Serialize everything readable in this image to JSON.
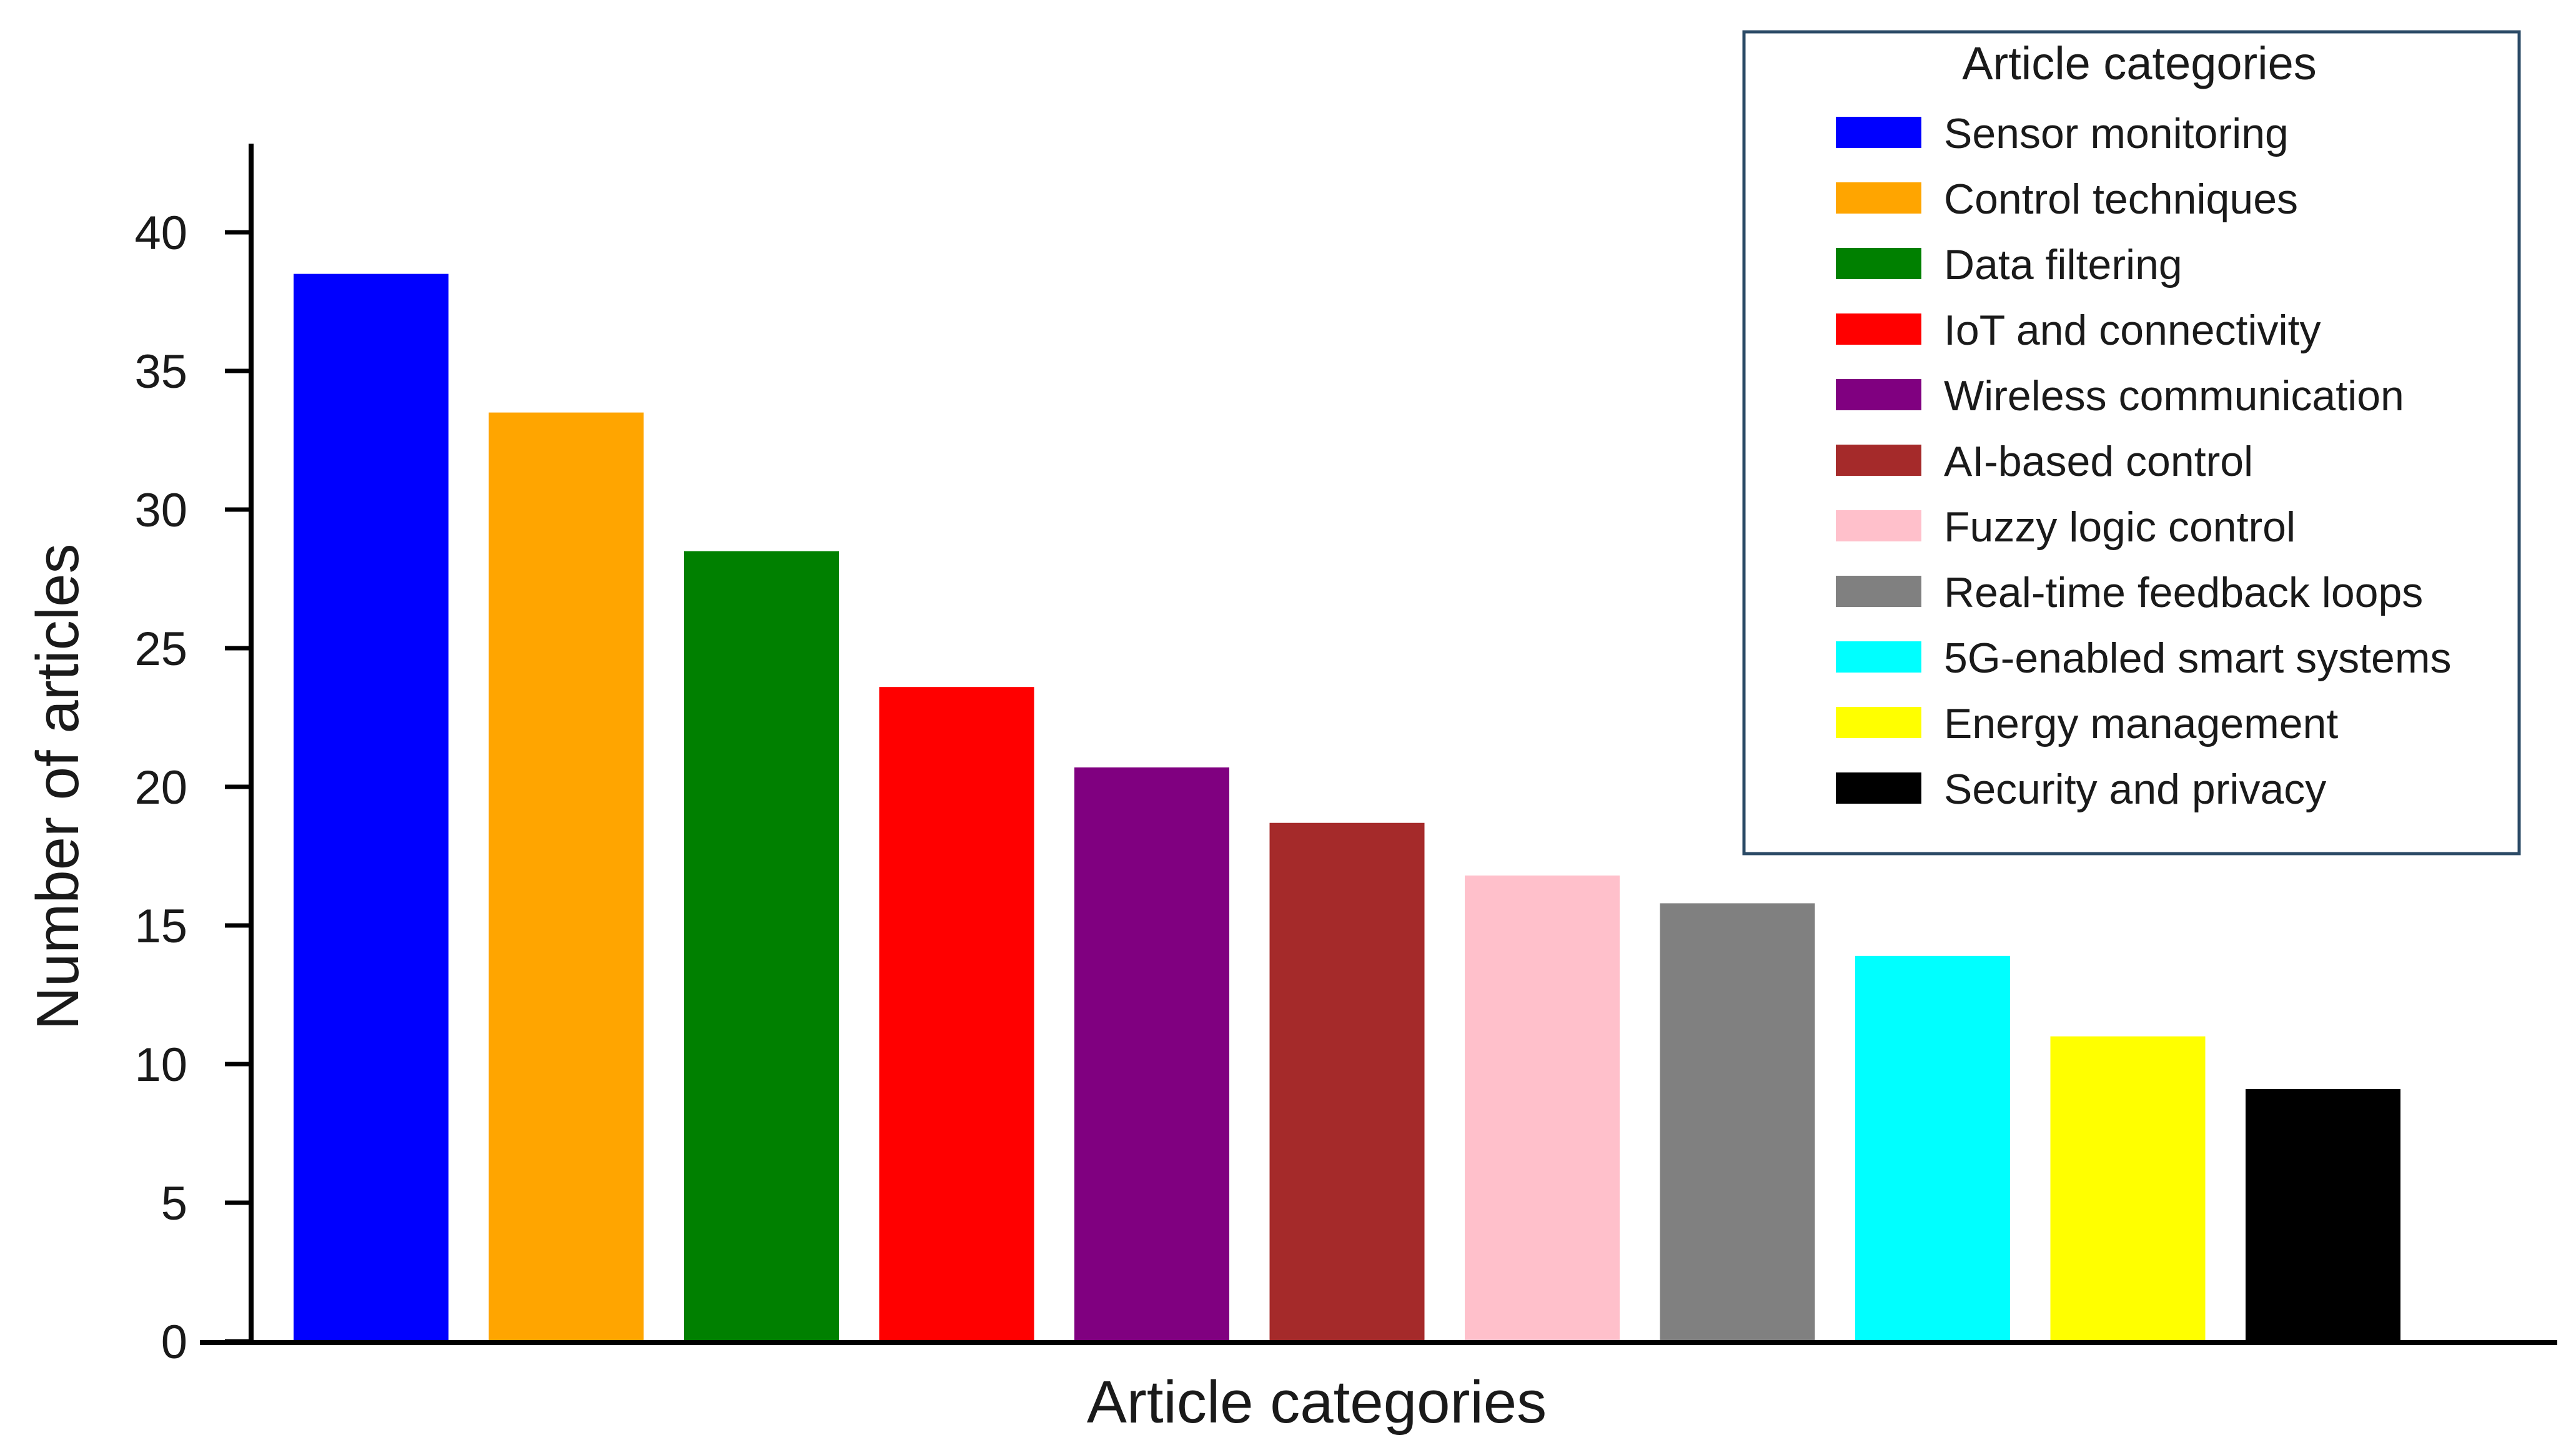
{
  "chart_data": {
    "type": "bar",
    "title": "",
    "xlabel": "Article categories",
    "ylabel": "Number of articles",
    "ylim": [
      0,
      43
    ],
    "yticks": [
      0,
      5,
      10,
      15,
      20,
      25,
      30,
      35,
      40
    ],
    "grid": false,
    "legend": {
      "title": "Article categories",
      "placement": "top-right"
    },
    "categories": [
      "Sensor monitoring",
      "Control techniques",
      "Data filtering",
      "IoT and connectivity",
      "Wireless communication",
      "AI-based control",
      "Fuzzy logic control",
      "Real-time feedback loops",
      "5G-enabled smart systems",
      "Energy management",
      "Security and privacy"
    ],
    "values": [
      38.5,
      33.5,
      28.5,
      23.6,
      20.7,
      18.7,
      16.8,
      15.8,
      13.9,
      11.0,
      9.1
    ],
    "colors": [
      "#0000FF",
      "#FFA500",
      "#008000",
      "#FF0000",
      "#800080",
      "#A52A2A",
      "#FFC0CB",
      "#808080",
      "#00FFFF",
      "#FFFF00",
      "#000000"
    ]
  }
}
